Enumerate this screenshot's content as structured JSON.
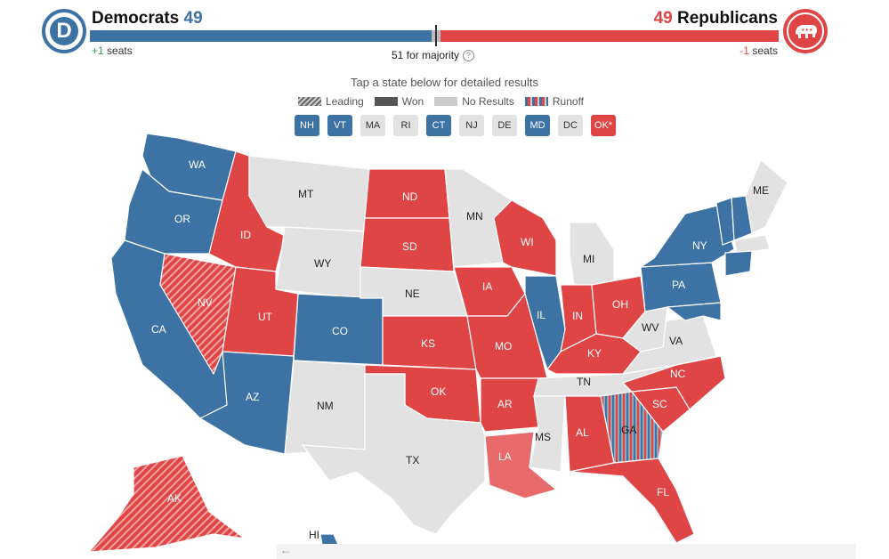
{
  "header": {
    "dem_name": "Democrats",
    "dem_seats": "49",
    "rep_seats": "49",
    "rep_name": "Republicans",
    "dem_delta": "+1",
    "dem_delta_unit": "seats",
    "rep_delta": "-1",
    "rep_delta_unit": "seats",
    "majority": "51 for majority",
    "help_icon": "question-icon"
  },
  "instructions": "Tap a state below for detailed results",
  "legend": [
    "Leading",
    "Won",
    "No Results",
    "Runoff"
  ],
  "small_states": [
    {
      "label": "NH",
      "status": "dem"
    },
    {
      "label": "VT",
      "status": "dem"
    },
    {
      "label": "MA",
      "status": "none"
    },
    {
      "label": "RI",
      "status": "none"
    },
    {
      "label": "CT",
      "status": "dem"
    },
    {
      "label": "NJ",
      "status": "none"
    },
    {
      "label": "DE",
      "status": "none"
    },
    {
      "label": "MD",
      "status": "dem"
    },
    {
      "label": "DC",
      "status": "none"
    },
    {
      "label": "OK*",
      "status": "rep"
    }
  ],
  "colors": {
    "dem": "#3d72a4",
    "rep": "#e04545",
    "rep_light": "#e86a6a",
    "none": "#e2e2e2"
  },
  "map_states": [
    "WA",
    "OR",
    "CA",
    "NV",
    "ID",
    "MT",
    "WY",
    "UT",
    "AZ",
    "CO",
    "NM",
    "ND",
    "SD",
    "NE",
    "KS",
    "OK",
    "TX",
    "MN",
    "IA",
    "MO",
    "AR",
    "LA",
    "WI",
    "IL",
    "MI",
    "IN",
    "OH",
    "KY",
    "TN",
    "MS",
    "AL",
    "GA",
    "FL",
    "SC",
    "NC",
    "VA",
    "WV",
    "PA",
    "NY",
    "ME",
    "AK",
    "HI"
  ],
  "scroll_icon": "left-arrow-icon"
}
